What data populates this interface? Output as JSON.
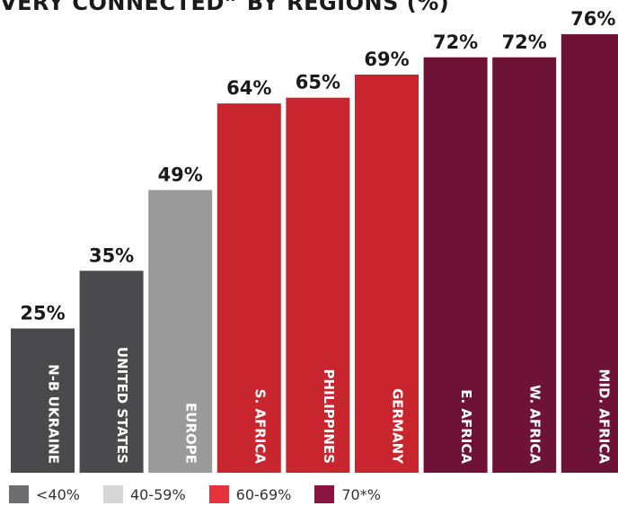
{
  "chart_data": {
    "type": "bar",
    "title": "VERY CONNECTED” BY REGIONS (%)",
    "categories": [
      "N-B UKRAINE",
      "UNITED STATES",
      "EUROPE",
      "S. AFRICA",
      "PHILIPPINES",
      "GERMANY",
      "E. AFRICA",
      "W. AFRICA",
      "MID. AFRICA"
    ],
    "values": [
      25,
      35,
      49,
      64,
      65,
      69,
      72,
      72,
      76
    ],
    "value_labels": [
      "25%",
      "35%",
      "49%",
      "64%",
      "65%",
      "69%",
      "72%",
      "72%",
      "76%"
    ],
    "bar_groups": [
      "lt40",
      "lt40",
      "g40_59",
      "g60_69",
      "g60_69",
      "g60_69",
      "g70",
      "g70",
      "g70"
    ],
    "ylim": [
      0,
      100
    ],
    "xlabel": "",
    "ylabel": "",
    "grid": false,
    "legend_position": "bottom-left",
    "legend": [
      {
        "key": "lt40",
        "label": "<40%",
        "color": "#6e6e70"
      },
      {
        "key": "g40_59",
        "label": "40-59%",
        "color": "#d6d6d6"
      },
      {
        "key": "g60_69",
        "label": "60-69%",
        "color": "#e8323c"
      },
      {
        "key": "g70",
        "label": "70*%",
        "color": "#8b1541"
      }
    ],
    "bar_colors": {
      "lt40": "#4a4a4c",
      "g40_59": "#9a9a9a",
      "g60_69": "#c8252e",
      "g70": "#6e1236"
    }
  }
}
